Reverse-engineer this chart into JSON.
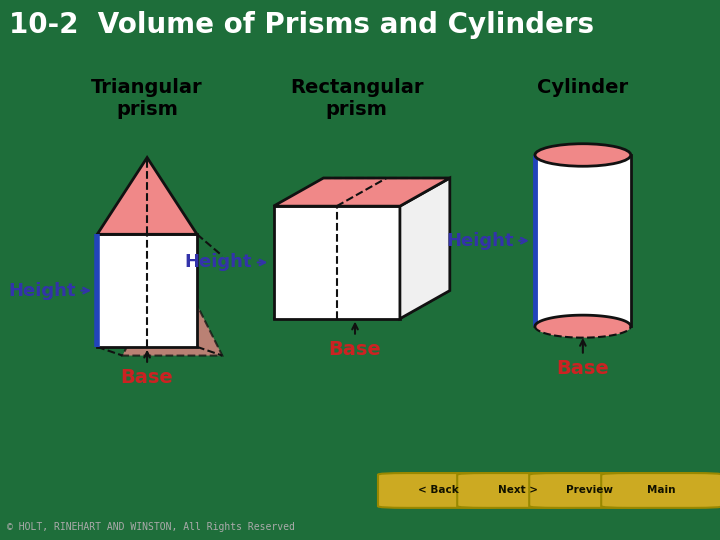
{
  "title": "10-2  Volume of Prisms and Cylinders",
  "title_bg": "#111111",
  "title_color": "#ffffff",
  "main_bg": "#ffffff",
  "border_bg": "#1e6e3a",
  "bottom_bar_bg": "#111111",
  "bottom_green_bg": "#2d8a4e",
  "copyright": "© HOLT, RINEHART AND WINSTON, All Rights Reserved",
  "labels": {
    "tri_title": "Triangular\nprism",
    "rect_title": "Rectangular\nprism",
    "cyl_title": "Cylinder",
    "height_color": "#3333aa",
    "base_color": "#cc2222",
    "label_fontsize": 13,
    "title_fontsize": 14
  },
  "pink_fill": "#f08888",
  "blue_edge": "#2244bb",
  "black_edge": "#111111",
  "nav_buttons": [
    "< Back",
    "Next >",
    "Preview",
    "Main"
  ],
  "nav_color": "#ccaa22",
  "nav_bg": "#2d8a4e"
}
